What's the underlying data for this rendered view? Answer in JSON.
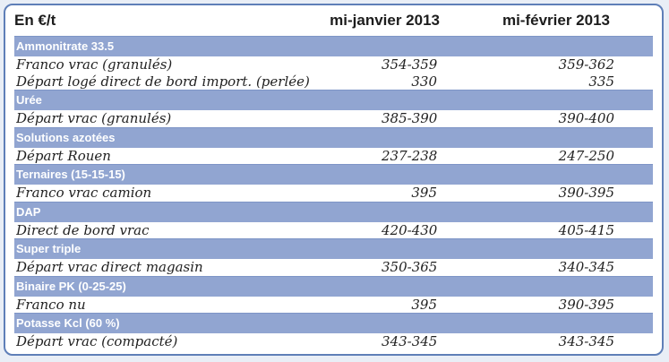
{
  "header": {
    "col_label": "En €/t",
    "col_jan": "mi-janvier 2013",
    "col_feb": "mi-février 2013"
  },
  "sections": [
    {
      "title": "Ammonitrate 33.5",
      "rows": [
        {
          "label": "Franco vrac (granulés)",
          "jan": "354-359",
          "feb": "359-362"
        },
        {
          "label": "Départ logé direct de bord import. (perlée)",
          "jan": "330",
          "feb": "335"
        }
      ]
    },
    {
      "title": "Urée",
      "rows": [
        {
          "label": "Départ vrac (granulés)",
          "jan": "385-390",
          "feb": "390-400"
        }
      ]
    },
    {
      "title": "Solutions azotées",
      "rows": [
        {
          "label": "Départ Rouen",
          "jan": "237-238",
          "feb": "247-250"
        }
      ]
    },
    {
      "title": "Ternaires (15-15-15)",
      "rows": [
        {
          "label": "Franco vrac camion",
          "jan": "395",
          "feb": "390-395"
        }
      ]
    },
    {
      "title": "DAP",
      "rows": [
        {
          "label": "Direct de bord vrac",
          "jan": "420-430",
          "feb": "405-415"
        }
      ]
    },
    {
      "title": "Super triple",
      "rows": [
        {
          "label": "Départ vrac direct magasin",
          "jan": "350-365",
          "feb": "340-345"
        }
      ]
    },
    {
      "title": "Binaire PK (0-25-25)",
      "rows": [
        {
          "label": "Franco nu",
          "jan": "395",
          "feb": "390-395"
        }
      ]
    },
    {
      "title": "Potasse Kcl (60 %)",
      "rows": [
        {
          "label": "Départ vrac (compacté)",
          "jan": "343-345",
          "feb": "343-345"
        }
      ]
    }
  ]
}
